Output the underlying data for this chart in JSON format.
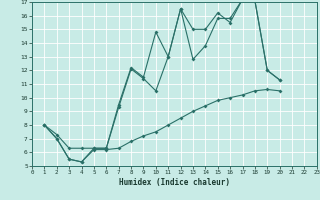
{
  "bg_color": "#c8ebe6",
  "line_color": "#2a7068",
  "xlabel": "Humidex (Indice chaleur)",
  "xlim": [
    0,
    23
  ],
  "ylim": [
    5,
    17
  ],
  "line1_x": [
    1,
    2,
    3,
    4,
    5,
    6,
    7,
    8,
    9,
    10,
    11,
    12,
    13,
    14,
    15,
    16,
    17,
    18,
    19,
    20
  ],
  "line1_y": [
    8.0,
    7.3,
    6.3,
    6.3,
    6.3,
    6.3,
    9.3,
    12.1,
    11.4,
    10.5,
    13.0,
    16.5,
    15.0,
    15.0,
    16.2,
    15.5,
    17.2,
    17.1,
    12.0,
    11.3
  ],
  "line2_x": [
    1,
    2,
    3,
    4,
    5,
    6,
    7,
    8,
    9,
    10,
    11,
    12,
    13,
    14,
    15,
    16,
    17,
    18,
    19,
    20,
    21,
    22
  ],
  "line2_y": [
    8.0,
    7.0,
    5.5,
    5.3,
    6.3,
    6.3,
    9.5,
    12.2,
    11.5,
    14.8,
    13.0,
    16.5,
    12.8,
    13.8,
    15.8,
    15.8,
    17.2,
    17.1,
    12.0,
    11.3,
    null,
    null
  ],
  "line3_x": [
    1,
    2,
    3,
    4,
    5,
    6,
    7,
    8,
    9,
    10,
    11,
    12,
    13,
    14,
    15,
    16,
    17,
    18,
    19,
    20,
    21,
    22
  ],
  "line3_y": [
    8.0,
    7.0,
    5.5,
    5.3,
    6.2,
    6.2,
    6.3,
    6.8,
    7.2,
    7.5,
    8.0,
    8.5,
    9.0,
    9.4,
    9.8,
    10.0,
    10.2,
    10.5,
    10.6,
    10.5,
    null,
    null
  ]
}
